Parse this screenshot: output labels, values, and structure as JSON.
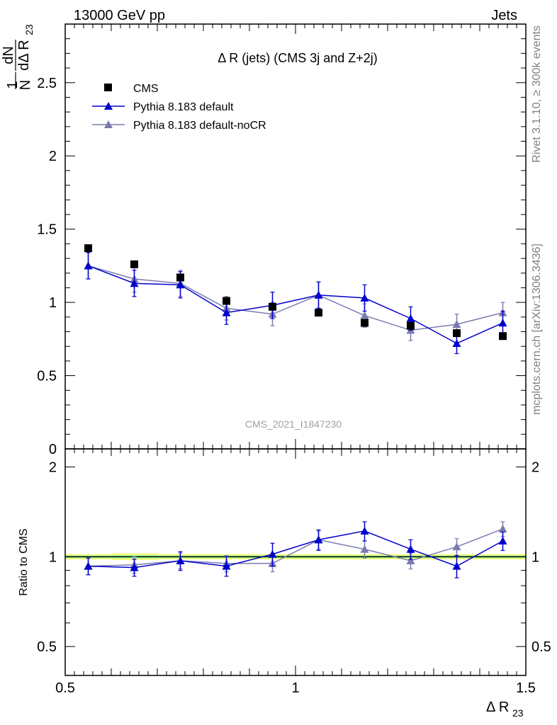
{
  "header": {
    "left": "13000 GeV pp",
    "right": "Jets"
  },
  "side_text": {
    "rivet": "Rivet 3.1.10, ≥ 300k events",
    "mcplots": "mcplots.cern.ch [arXiv:1306.3436]"
  },
  "plot_title": "Δ R (jets) (CMS 3j and Z+2j)",
  "watermark": "CMS_2021_I1847230",
  "colors": {
    "cms": "#000000",
    "default": "#0000cc",
    "nocr": "#7b7bb0",
    "band_yellow": "#f5ff78",
    "band_green": "#9aff9a"
  },
  "chart_data": [
    {
      "type": "scatter",
      "panel": "main",
      "ylabel": "1/N dN/dΔR23",
      "xlim": [
        0.5,
        1.5
      ],
      "ylim": [
        0,
        2.9
      ],
      "y_ticks": [
        "0",
        "0.5",
        "1",
        "1.5",
        "2",
        "2.5"
      ],
      "y_tick_values": [
        0,
        0.5,
        1,
        1.5,
        2,
        2.5
      ],
      "x": [
        0.55,
        0.65,
        0.75,
        0.85,
        0.95,
        1.05,
        1.15,
        1.25,
        1.35,
        1.45
      ],
      "legend": [
        "CMS",
        "Pythia 8.183 default",
        "Pythia 8.183 default-noCR"
      ],
      "series": [
        {
          "name": "CMS",
          "marker": "square",
          "values": [
            1.37,
            1.26,
            1.17,
            1.01,
            0.97,
            0.93,
            0.86,
            0.84,
            0.79,
            0.77
          ],
          "errors": [
            0.02,
            0.02,
            0.02,
            0.02,
            0.02,
            0.02,
            0.02,
            0.02,
            0.02,
            0.02
          ]
        },
        {
          "name": "Pythia 8.183 default",
          "marker": "triangle",
          "values": [
            1.25,
            1.13,
            1.12,
            0.93,
            0.98,
            1.05,
            1.03,
            0.89,
            0.72,
            0.86
          ],
          "errors": [
            0.09,
            0.09,
            0.09,
            0.08,
            0.09,
            0.09,
            0.09,
            0.08,
            0.07,
            0.08
          ]
        },
        {
          "name": "Pythia 8.183 default-noCR",
          "marker": "triangle",
          "values": [
            1.25,
            1.16,
            1.13,
            0.96,
            0.92,
            1.05,
            0.91,
            0.81,
            0.85,
            0.93
          ],
          "errors": [
            0.09,
            0.09,
            0.09,
            0.08,
            0.08,
            0.09,
            0.08,
            0.07,
            0.07,
            0.07
          ]
        }
      ]
    },
    {
      "type": "scatter",
      "panel": "ratio",
      "ylabel": "Ratio to CMS",
      "xlabel": "Δ R23",
      "xlim": [
        0.5,
        1.5
      ],
      "ylim": [
        0.4,
        2.3
      ],
      "x_ticks": [
        "0.5",
        "1",
        "1.5"
      ],
      "x_tick_values": [
        0.5,
        1.0,
        1.5
      ],
      "y_ticks": [
        "0.5",
        "1",
        "2"
      ],
      "y_tick_values": [
        0.5,
        1,
        2
      ],
      "x": [
        0.55,
        0.65,
        0.75,
        0.85,
        0.95,
        1.05,
        1.15,
        1.25,
        1.35,
        1.45
      ],
      "series": [
        {
          "name": "Pythia 8.183 default",
          "values": [
            0.93,
            0.92,
            0.97,
            0.93,
            1.02,
            1.14,
            1.22,
            1.06,
            0.93,
            1.13
          ],
          "errors": [
            0.06,
            0.06,
            0.07,
            0.07,
            0.09,
            0.09,
            0.09,
            0.08,
            0.08,
            0.08
          ]
        },
        {
          "name": "Pythia 8.183 default-noCR",
          "values": [
            0.93,
            0.94,
            0.97,
            0.95,
            0.95,
            1.14,
            1.06,
            0.97,
            1.08,
            1.24
          ],
          "errors": [
            0.06,
            0.06,
            0.06,
            0.06,
            0.06,
            0.08,
            0.07,
            0.06,
            0.07,
            0.07
          ]
        }
      ],
      "band_half_width": [
        0.02,
        0.025,
        0.02,
        0.02,
        0.02,
        0.02,
        0.02,
        0.02,
        0.02,
        0.02
      ]
    }
  ]
}
